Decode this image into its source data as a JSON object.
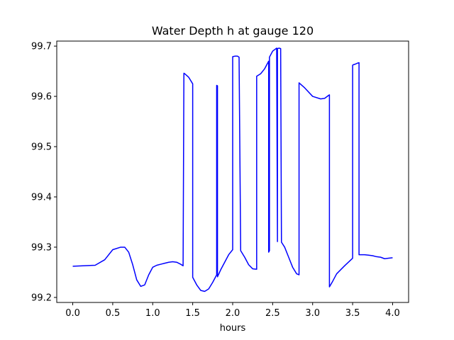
{
  "chart_data": {
    "type": "line",
    "title": "Water Depth h at gauge 120",
    "xlabel": "hours",
    "ylabel": "",
    "xlim": [
      -0.2,
      4.2
    ],
    "ylim": [
      99.19,
      99.71
    ],
    "xticks": [
      0.0,
      0.5,
      1.0,
      1.5,
      2.0,
      2.5,
      3.0,
      3.5,
      4.0
    ],
    "xtick_labels": [
      "0.0",
      "0.5",
      "1.0",
      "1.5",
      "2.0",
      "2.5",
      "3.0",
      "3.5",
      "4.0"
    ],
    "yticks": [
      99.2,
      99.3,
      99.4,
      99.5,
      99.6,
      99.7
    ],
    "ytick_labels": [
      "99.2",
      "99.3",
      "99.4",
      "99.5",
      "99.6",
      "99.7"
    ],
    "grid": false,
    "series": [
      {
        "color": "#0000ff",
        "x": [
          0.0,
          0.28,
          0.4,
          0.5,
          0.6,
          0.65,
          0.7,
          0.75,
          0.8,
          0.85,
          0.9,
          0.95,
          1.0,
          1.05,
          1.1,
          1.15,
          1.2,
          1.25,
          1.3,
          1.35,
          1.38,
          1.39,
          1.4,
          1.45,
          1.5,
          1.5,
          1.55,
          1.6,
          1.65,
          1.7,
          1.75,
          1.8,
          1.8,
          1.81,
          1.81,
          1.85,
          1.9,
          1.95,
          2.0,
          2.0,
          2.03,
          2.06,
          2.08,
          2.1,
          2.1,
          2.15,
          2.2,
          2.25,
          2.3,
          2.3,
          2.35,
          2.4,
          2.45,
          2.45,
          2.46,
          2.46,
          2.5,
          2.55,
          2.55,
          2.56,
          2.56,
          2.58,
          2.6,
          2.61,
          2.61,
          2.65,
          2.7,
          2.75,
          2.8,
          2.83,
          2.83,
          2.9,
          3.0,
          3.1,
          3.15,
          3.2,
          3.21,
          3.21,
          3.25,
          3.3,
          3.4,
          3.5,
          3.5,
          3.51,
          3.53,
          3.56,
          3.58,
          3.58,
          3.65,
          3.7,
          3.75,
          3.8,
          3.85,
          3.9,
          3.95,
          4.0
        ],
        "y": [
          99.262,
          99.264,
          99.275,
          99.295,
          99.3,
          99.3,
          99.29,
          99.265,
          99.235,
          99.222,
          99.225,
          99.245,
          99.26,
          99.264,
          99.266,
          99.268,
          99.27,
          99.271,
          99.27,
          99.266,
          99.263,
          99.646,
          99.645,
          99.638,
          99.625,
          99.24,
          99.225,
          99.214,
          99.212,
          99.217,
          99.23,
          99.245,
          99.622,
          99.621,
          99.241,
          99.255,
          99.27,
          99.285,
          99.295,
          99.679,
          99.68,
          99.68,
          99.678,
          99.295,
          99.293,
          99.28,
          99.265,
          99.257,
          99.256,
          99.64,
          99.645,
          99.655,
          99.67,
          99.29,
          99.293,
          99.678,
          99.69,
          99.696,
          99.695,
          99.311,
          99.695,
          99.696,
          99.695,
          99.31,
          99.31,
          99.3,
          99.28,
          99.26,
          99.247,
          99.245,
          99.627,
          99.617,
          99.6,
          99.595,
          99.596,
          99.602,
          99.603,
          99.221,
          99.232,
          99.247,
          99.263,
          99.278,
          99.662,
          99.663,
          99.664,
          99.666,
          99.667,
          99.285,
          99.285,
          99.284,
          99.283,
          99.281,
          99.28,
          99.277,
          99.278,
          99.279
        ]
      }
    ]
  }
}
